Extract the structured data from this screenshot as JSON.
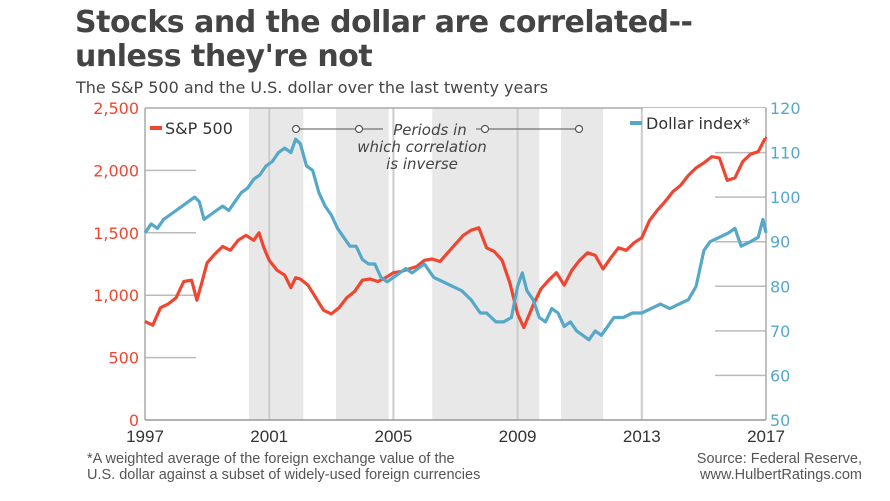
{
  "header": {
    "title_line1": "Stocks and the dollar are correlated--",
    "title_line2": "unless they're not",
    "subtitle": "The S&P 500 and the U.S. dollar over the last twenty years"
  },
  "footer": {
    "footnote_line1": "*A weighted average of the foreign exchange value of the",
    "footnote_line2": "U.S. dollar against a subset of widely-used foreign currencies",
    "source_line1": "Source: Federal Reserve,",
    "source_line2": "www.HulbertRatings.com"
  },
  "colors": {
    "sp500": "#ef4631",
    "dollar": "#55a8c8",
    "shade": "#e8e8e8",
    "grid": "#bbbbbb",
    "text": "#444444"
  },
  "chart_data": {
    "type": "line",
    "title": "Stocks and the dollar are correlated--unless they're not",
    "subtitle": "The S&P 500 and the U.S. dollar over the last twenty years",
    "xlabel": "",
    "x_ticks": [
      "1997",
      "2001",
      "2005",
      "2009",
      "2013",
      "2017"
    ],
    "xlim": [
      1997,
      2017
    ],
    "y_left": {
      "label": "S&P 500",
      "ylim": [
        0,
        2500
      ],
      "ticks": [
        "0",
        "500",
        "1,000",
        "1,500",
        "2,000",
        "2,500"
      ]
    },
    "y_right": {
      "label": "Dollar index*",
      "ylim": [
        50,
        120
      ],
      "ticks": [
        "50",
        "60",
        "70",
        "80",
        "90",
        "100",
        "110",
        "120"
      ]
    },
    "grid": true,
    "legend": [
      {
        "name": "S&P 500",
        "placement": "top-left",
        "axis": "left"
      },
      {
        "name": "Dollar index*",
        "placement": "top-right",
        "axis": "right"
      }
    ],
    "annotation": {
      "line1": "Periods in",
      "line2": "which correlation",
      "line3": "is inverse"
    },
    "shaded_periods": [
      [
        2000.35,
        2002.1
      ],
      [
        2003.15,
        2004.85
      ],
      [
        2006.25,
        2009.7
      ],
      [
        2010.4,
        2011.75
      ]
    ],
    "series": [
      {
        "name": "S&P 500",
        "axis": "left",
        "x": [
          1997.0,
          1997.25,
          1997.5,
          1997.75,
          1998.0,
          1998.25,
          1998.5,
          1998.67,
          1998.83,
          1999.0,
          1999.25,
          1999.5,
          1999.75,
          2000.0,
          2000.25,
          2000.5,
          2000.67,
          2000.83,
          2001.0,
          2001.25,
          2001.5,
          2001.7,
          2001.85,
          2002.0,
          2002.25,
          2002.5,
          2002.75,
          2003.0,
          2003.25,
          2003.5,
          2003.75,
          2004.0,
          2004.25,
          2004.5,
          2004.75,
          2005.0,
          2005.25,
          2005.5,
          2005.75,
          2006.0,
          2006.25,
          2006.5,
          2006.75,
          2007.0,
          2007.25,
          2007.5,
          2007.75,
          2008.0,
          2008.25,
          2008.5,
          2008.75,
          2009.0,
          2009.2,
          2009.5,
          2009.75,
          2010.0,
          2010.25,
          2010.5,
          2010.75,
          2011.0,
          2011.25,
          2011.5,
          2011.75,
          2012.0,
          2012.25,
          2012.5,
          2012.75,
          2013.0,
          2013.25,
          2013.5,
          2013.75,
          2014.0,
          2014.25,
          2014.5,
          2014.75,
          2015.0,
          2015.25,
          2015.5,
          2015.75,
          2016.0,
          2016.25,
          2016.5,
          2016.75,
          2017.0
        ],
        "values": [
          790,
          760,
          900,
          930,
          980,
          1110,
          1120,
          960,
          1100,
          1260,
          1330,
          1390,
          1360,
          1440,
          1480,
          1440,
          1500,
          1380,
          1280,
          1200,
          1160,
          1060,
          1140,
          1130,
          1080,
          980,
          880,
          850,
          900,
          980,
          1030,
          1120,
          1130,
          1110,
          1140,
          1180,
          1190,
          1210,
          1230,
          1280,
          1290,
          1270,
          1340,
          1410,
          1480,
          1520,
          1540,
          1380,
          1350,
          1280,
          1100,
          850,
          740,
          920,
          1050,
          1120,
          1180,
          1080,
          1200,
          1280,
          1340,
          1320,
          1210,
          1300,
          1380,
          1360,
          1420,
          1460,
          1600,
          1680,
          1750,
          1830,
          1880,
          1960,
          2020,
          2060,
          2110,
          2100,
          1920,
          1940,
          2070,
          2130,
          2150,
          2270
        ]
      },
      {
        "name": "Dollar index*",
        "axis": "right",
        "x": [
          1997.0,
          1997.2,
          1997.4,
          1997.6,
          1997.8,
          1998.0,
          1998.2,
          1998.4,
          1998.6,
          1998.75,
          1998.9,
          1999.1,
          1999.3,
          1999.5,
          1999.7,
          1999.9,
          2000.1,
          2000.3,
          2000.5,
          2000.7,
          2000.9,
          2001.1,
          2001.3,
          2001.5,
          2001.7,
          2001.85,
          2002.0,
          2002.2,
          2002.4,
          2002.6,
          2002.8,
          2003.0,
          2003.2,
          2003.4,
          2003.6,
          2003.8,
          2004.0,
          2004.2,
          2004.4,
          2004.6,
          2004.8,
          2005.0,
          2005.2,
          2005.4,
          2005.6,
          2005.8,
          2006.0,
          2006.3,
          2006.6,
          2006.9,
          2007.2,
          2007.5,
          2007.8,
          2008.0,
          2008.3,
          2008.55,
          2008.8,
          2009.0,
          2009.15,
          2009.3,
          2009.5,
          2009.7,
          2009.9,
          2010.1,
          2010.3,
          2010.5,
          2010.7,
          2010.9,
          2011.1,
          2011.3,
          2011.5,
          2011.7,
          2011.9,
          2012.1,
          2012.4,
          2012.7,
          2013.0,
          2013.3,
          2013.6,
          2013.9,
          2014.2,
          2014.5,
          2014.75,
          2015.0,
          2015.2,
          2015.5,
          2015.8,
          2016.0,
          2016.2,
          2016.5,
          2016.75,
          2016.9,
          2017.0
        ],
        "values": [
          92,
          94,
          93,
          95,
          96,
          97,
          98,
          99,
          100,
          99,
          95,
          96,
          97,
          98,
          97,
          99,
          101,
          102,
          104,
          105,
          107,
          108,
          110,
          111,
          110,
          113,
          112,
          107,
          106,
          101,
          98,
          96,
          93,
          91,
          89,
          89,
          86,
          85,
          85,
          82,
          81,
          82,
          83,
          84,
          83,
          84,
          85,
          82,
          81,
          80,
          79,
          77,
          74,
          74,
          72,
          72,
          73,
          80,
          83,
          79,
          77,
          73,
          72,
          75,
          74,
          71,
          72,
          70,
          69,
          68,
          70,
          69,
          71,
          73,
          73,
          74,
          74,
          75,
          76,
          75,
          76,
          77,
          80,
          88,
          90,
          91,
          92,
          93,
          89,
          90,
          91,
          95,
          92
        ]
      }
    ]
  }
}
